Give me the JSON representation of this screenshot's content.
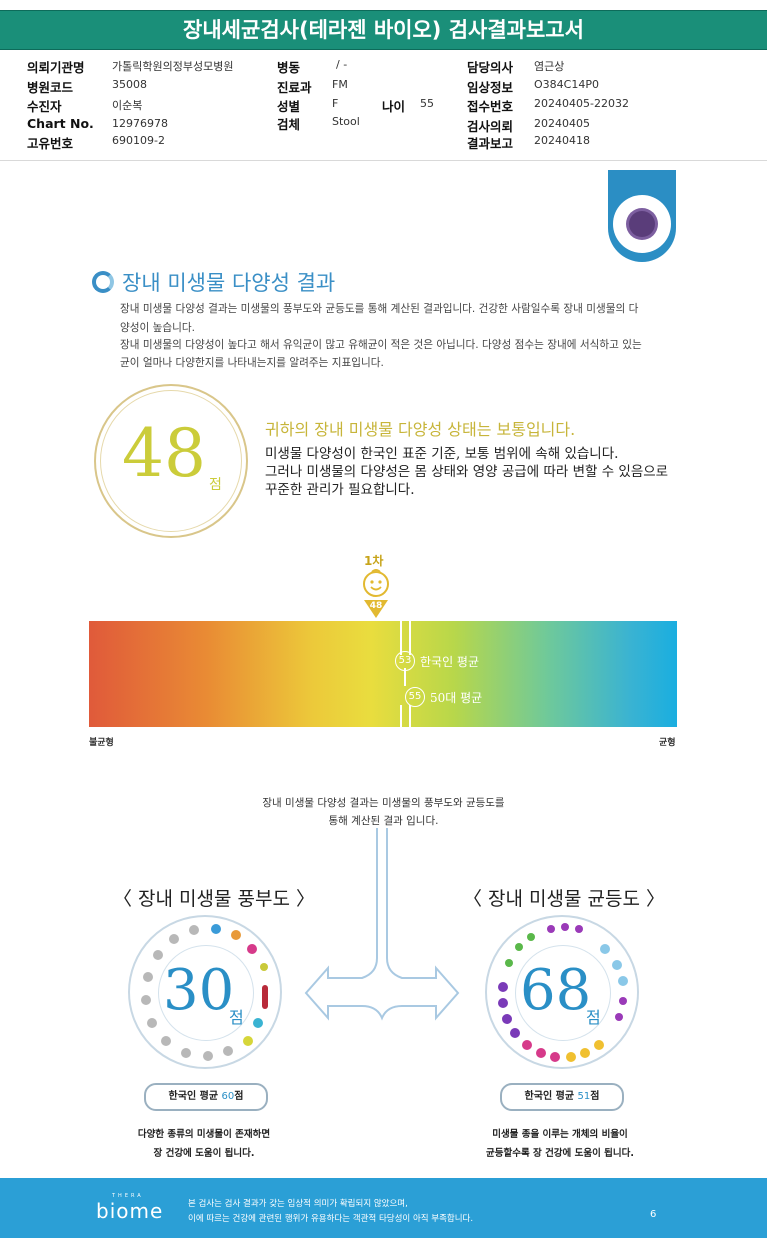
{
  "header": {
    "title": "장내세균검사(테라젠 바이오) 검사결과보고서"
  },
  "info": {
    "col1": [
      {
        "label": "의뢰기관명",
        "value": "가톨릭학원의정부성모병원"
      },
      {
        "label": "병원코드",
        "value": "35008"
      },
      {
        "label": "수진자",
        "value": "이순복"
      },
      {
        "label": "Chart No.",
        "value": "12976978"
      },
      {
        "label": "고유번호",
        "value": "690109-2"
      }
    ],
    "col2": [
      {
        "label": "병동",
        "value": "/ -"
      },
      {
        "label": "진료과",
        "value": "FM"
      },
      {
        "label": "성별",
        "value": "F"
      },
      {
        "label": "검체",
        "value": "Stool"
      }
    ],
    "age": {
      "label": "나이",
      "value": "55"
    },
    "col3": [
      {
        "label": "담당의사",
        "value": "염근상"
      },
      {
        "label": "임상정보",
        "value": "O384C14P0"
      },
      {
        "label": "접수번호",
        "value": "20240405-22032"
      },
      {
        "label": "검사의뢰",
        "value": "20240405"
      },
      {
        "label": "결과보고",
        "value": "20240418"
      }
    ]
  },
  "section": {
    "title": "장내 미생물 다양성 결과",
    "para": [
      "장내 미생물 다양성 결과는 미생물의 풍부도와 균등도를 통해 계산된 결과입니다. 건강한 사람일수록 장내 미생물의 다",
      "양성이 높습니다.",
      "장내 미생물의 다양성이 높다고 해서 유익균이 많고 유해균이 적은 것은 아닙니다. 다양성 점수는 장내에 서식하고 있는",
      "균이 얼마나 다양한지를 나타내는지를 알려주는 지표입니다."
    ]
  },
  "score": {
    "value": "48",
    "unit": "점",
    "headline": "귀하의 장내 미생물 다양성 상태는 보통입니다.",
    "lines": [
      "미생물 다양성이 한국인 표준 기준, 보통 범위에 속해 있습니다.",
      "그러나 미생물의 다양성은 몸 상태와 영양 공급에 따라 변할 수 있음으로",
      "꾸준한 관리가 필요합니다."
    ]
  },
  "scale": {
    "round_label": "1차",
    "marker_value": "48",
    "marker_score": 48,
    "korean_avg": {
      "value": "53",
      "label": "한국인 평균",
      "score": 53
    },
    "age_avg": {
      "value": "55",
      "label": "50대 평균",
      "score": 55
    },
    "left_label": "불균형",
    "right_label": "균형"
  },
  "lower": {
    "intro": [
      "장내 미생물 다양성 결과는 미생물의 풍부도와 균등도를",
      "통해 계산된 결과 입니다."
    ],
    "richness": {
      "title": "〈 장내 미생물 풍부도 〉",
      "value": "30",
      "unit": "점",
      "avg_prefix": "한국인 평균 ",
      "avg_value": "60",
      "avg_suffix": "점",
      "caption": [
        "다양한 종류의 미생물이 존재하면",
        "장 건강에 도움이 됩니다."
      ]
    },
    "evenness": {
      "title": "〈 장내 미생물 균등도 〉",
      "value": "68",
      "unit": "점",
      "avg_prefix": "한국인 평균 ",
      "avg_value": "51",
      "avg_suffix": "점",
      "caption": [
        "미생물 종을 이루는 개체의 비율이",
        "균등할수록 장 건강에 도움이 됩니다."
      ]
    }
  },
  "footer": {
    "logo_small": "THERA",
    "logo": "biome",
    "text": [
      "본 검사는 검사 결과가 갖는 임상적 의미가 확립되지 않았으며,",
      "이에 따르는 건강에 관련된 행위가 유용하다는 객관적 타당성이 아직 부족합니다."
    ],
    "page": "6"
  },
  "colors": {
    "accent": "#2a8fc6",
    "header": "#1a8f79",
    "score": "#cbcc3a"
  }
}
